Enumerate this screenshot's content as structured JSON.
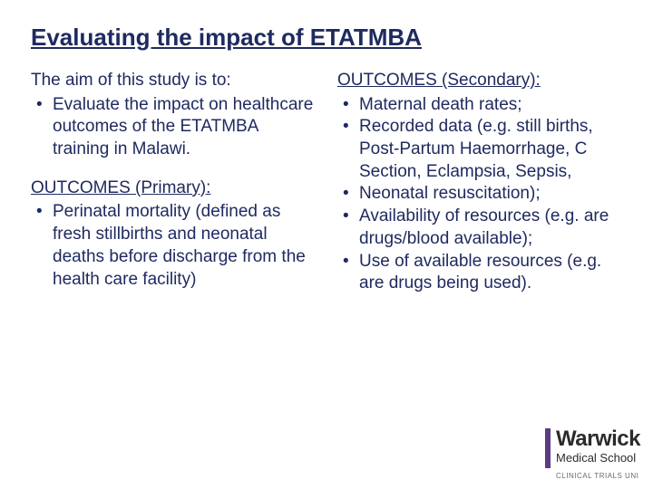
{
  "colors": {
    "text": "#1f2a60",
    "background": "#ffffff",
    "logo_bar": "#5b3a86",
    "logo_text": "#2b2b2b",
    "logo_sub": "#6a6a6a"
  },
  "typography": {
    "title_fontsize": 26,
    "body_fontsize": 19,
    "font_family": "Arial"
  },
  "title": "Evaluating the impact of ETATMBA",
  "left": {
    "intro": "The aim of this study is to:",
    "aim_items": [
      "Evaluate the impact on healthcare outcomes of the ETATMBA training in Malawi."
    ],
    "primary_head": "OUTCOMES (Primary):",
    "primary_items": [
      "Perinatal mortality (defined as fresh stillbirths and neonatal deaths before discharge from the health care facility)"
    ]
  },
  "right": {
    "secondary_head": "OUTCOMES (Secondary):",
    "secondary_items": [
      "Maternal death rates;",
      "Recorded data (e.g. still births, Post-Partum Haemorrhage, C Section, Eclampsia, Sepsis,",
      "Neonatal resuscitation);",
      "Availability of resources (e.g. are drugs/blood available);",
      "Use of available resources (e.g. are drugs being used)."
    ]
  },
  "logo": {
    "line1": "Warwick",
    "line2": "Medical School",
    "sub": "CLINICAL TRIALS UNI"
  }
}
